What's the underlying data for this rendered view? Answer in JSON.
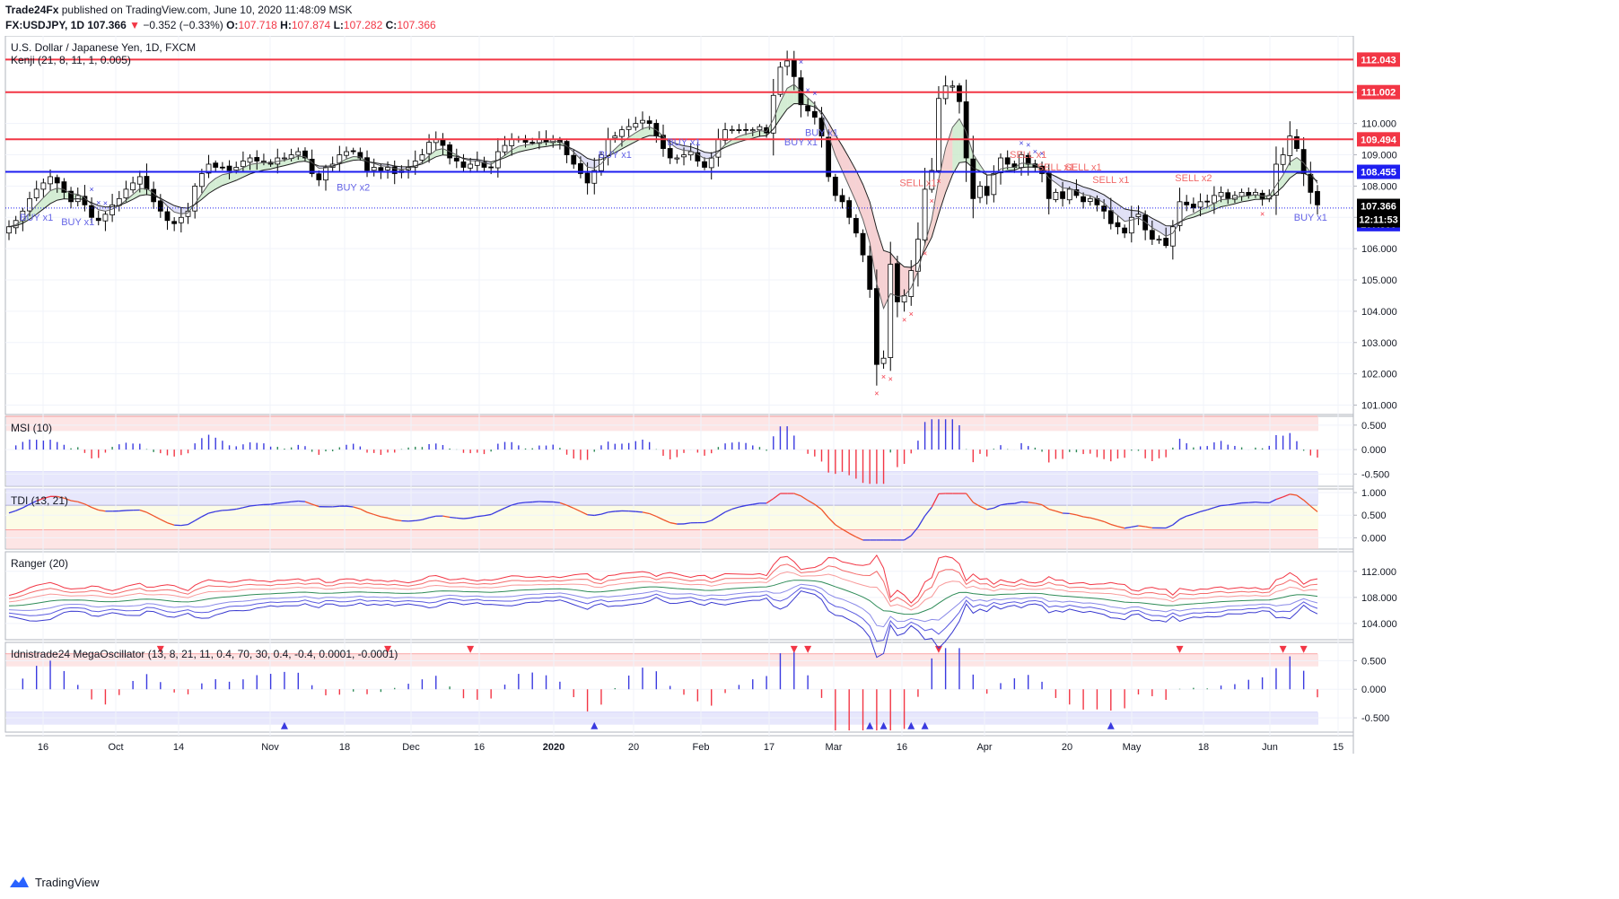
{
  "header": {
    "line1_prefix": "Trade24Fx",
    "line1_rest": "published on TradingView.com, June 10, 2020 11:48:09 MSK",
    "symbol": "FX:USDJPY, 1D",
    "last": "107.366",
    "change": "−0.352 (−0.33%)",
    "o_label": "O:",
    "o": "107.718",
    "h_label": "H:",
    "h": "107.874",
    "l_label": "L:",
    "l": "107.282",
    "c_label": "C:",
    "c": "107.366"
  },
  "footer": {
    "brand": "TradingView"
  },
  "colors": {
    "red_level": "#f23645",
    "blue_level": "#1e1ef0",
    "up": "#ffffff",
    "down": "#000000"
  },
  "chart_data": [
    {
      "type": "candlestick",
      "title": "U.S. Dollar / Japanese Yen, 1D, FXCM",
      "indicator": "Kenji (21, 8, 11, 1, 0.005)",
      "ylim": [
        100.7,
        112.8
      ],
      "yticks": [
        101,
        102,
        103,
        104,
        105,
        106,
        107,
        108,
        109,
        110,
        111
      ],
      "ytick_labels": [
        "101.000",
        "102.000",
        "103.000",
        "104.000",
        "105.000",
        "106.000",
        "107.000",
        "108.000",
        "109.000",
        "110.000",
        "111.000"
      ],
      "levels": [
        {
          "value": 112.043,
          "label": "112.043",
          "color": "#f23645"
        },
        {
          "value": 111.002,
          "label": "111.002",
          "color": "#f23645"
        },
        {
          "value": 109.494,
          "label": "109.494",
          "color": "#f23645"
        },
        {
          "value": 108.455,
          "label": "108.455",
          "color": "#1e1ef0"
        },
        {
          "value": 107.3,
          "label": "107.300",
          "color": "#1e1ef0",
          "dotted": true
        }
      ],
      "last_price": {
        "value": 107.366,
        "label": "107.366",
        "countdown": "12:11:53"
      },
      "x_labels": [
        "16",
        "Oct",
        "14",
        "Nov",
        "18",
        "Dec",
        "16",
        "2020",
        "20",
        "Feb",
        "17",
        "Mar",
        "16",
        "Apr",
        "20",
        "May",
        "18",
        "Jun",
        "15"
      ],
      "annotations": [
        {
          "text": "BUY x1",
          "date": "Sep 16",
          "price": 106.9,
          "side": "buy"
        },
        {
          "text": "BUY x1",
          "date": "Sep 24",
          "price": 106.75,
          "side": "buy"
        },
        {
          "text": "BUY x2",
          "date": "Nov 14",
          "price": 107.85,
          "side": "buy"
        },
        {
          "text": "BUY x1",
          "date": "Dec 26",
          "price": 108.9,
          "side": "buy"
        },
        {
          "text": "BUY x1",
          "date": "Jan 23",
          "price": 109.3,
          "side": "buy"
        },
        {
          "text": "BUY x1",
          "date": "Feb 20",
          "price": 109.3,
          "side": "buy"
        },
        {
          "text": "BUY x1",
          "date": "Feb 25",
          "price": 109.6,
          "side": "buy"
        },
        {
          "text": "SELL x1",
          "date": "Mar 13",
          "price": 108.0,
          "side": "sell"
        },
        {
          "text": "SELL x1",
          "date": "Apr 8",
          "price": 108.9,
          "side": "sell"
        },
        {
          "text": "SELL x1",
          "date": "Apr 14",
          "price": 108.5,
          "side": "sell"
        },
        {
          "text": "SELL x1",
          "date": "Apr 17",
          "price": 108.5,
          "side": "sell"
        },
        {
          "text": "SELL x1",
          "date": "Apr 22",
          "price": 108.1,
          "side": "sell"
        },
        {
          "text": "SELL x2",
          "date": "May 13",
          "price": 108.15,
          "side": "sell"
        },
        {
          "text": "BUY x1",
          "date": "Jun 2",
          "price": 106.9,
          "side": "buy"
        }
      ],
      "series": [
        {
          "name": "OHLC",
          "description": "USDJPY daily candles, Sep 2019 – Jun 10 2020, approximated from the chart",
          "closes": [
            106.7,
            106.9,
            107.2,
            107.6,
            107.9,
            108.1,
            108.3,
            108.1,
            107.8,
            107.5,
            107.7,
            107.4,
            107.0,
            106.9,
            107.1,
            107.4,
            107.6,
            107.9,
            108.1,
            108.3,
            107.9,
            107.5,
            107.2,
            106.9,
            106.8,
            107.0,
            107.2,
            108.0,
            108.4,
            108.7,
            108.6,
            108.6,
            108.5,
            108.6,
            108.8,
            108.9,
            108.8,
            108.8,
            108.7,
            108.9,
            108.9,
            109.0,
            109.1,
            108.9,
            108.4,
            108.2,
            108.6,
            108.7,
            109.0,
            109.1,
            109.1,
            108.9,
            108.5,
            108.6,
            108.5,
            108.6,
            108.4,
            108.5,
            108.6,
            108.8,
            109.0,
            109.4,
            109.5,
            109.3,
            108.9,
            108.8,
            108.6,
            108.7,
            108.8,
            108.6,
            108.6,
            109.1,
            109.3,
            109.5,
            109.5,
            109.4,
            109.4,
            109.5,
            109.4,
            109.5,
            109.4,
            109.0,
            108.7,
            108.4,
            108.1,
            108.5,
            109.0,
            109.5,
            109.6,
            109.8,
            109.9,
            110.0,
            110.1,
            110.0,
            109.6,
            109.2,
            108.9,
            108.9,
            109.0,
            109.1,
            108.8,
            108.6,
            108.9,
            109.5,
            109.8,
            109.8,
            109.8,
            109.8,
            109.8,
            109.9,
            109.7,
            110.9,
            111.8,
            112.0,
            111.5,
            110.6,
            110.4,
            110.2,
            109.6,
            108.3,
            107.7,
            107.5,
            107.0,
            106.5,
            105.8,
            104.7,
            102.3,
            102.5,
            105.5,
            104.3,
            104.5,
            105.3,
            106.3,
            107.9,
            108.5,
            110.8,
            111.2,
            111.2,
            110.7,
            108.9,
            107.6,
            108.0,
            107.7,
            108.4,
            108.9,
            108.7,
            108.6,
            109.0,
            108.7,
            108.6,
            108.4,
            107.6,
            107.8,
            107.6,
            107.9,
            107.7,
            107.5,
            107.6,
            107.4,
            107.2,
            106.8,
            106.7,
            106.5,
            107.0,
            107.1,
            106.6,
            106.3,
            106.3,
            106.1,
            106.7,
            107.5,
            107.4,
            107.3,
            107.5,
            107.5,
            107.7,
            107.8,
            107.6,
            107.7,
            107.8,
            107.7,
            107.8,
            107.6,
            107.7,
            108.7,
            109.0,
            109.6,
            109.2,
            108.4,
            107.8,
            107.4
          ]
        },
        {
          "name": "Kenji upper"
        },
        {
          "name": "Kenji lower"
        }
      ]
    },
    {
      "type": "histogram",
      "title": "MSI (10)",
      "ylim": [
        -0.75,
        0.68
      ],
      "yticks": [
        0.5,
        0.0,
        -0.5
      ],
      "ytick_labels": [
        "0.500",
        "0.000",
        "-0.500"
      ],
      "bands": [
        {
          "from": 0.38,
          "to": 0.68,
          "color": "#fbd0d0"
        },
        {
          "from": -0.75,
          "to": -0.45,
          "color": "#d4d4fa"
        }
      ]
    },
    {
      "type": "line",
      "title": "TDI (13, 21)",
      "ylim": [
        -0.25,
        1.08
      ],
      "yticks": [
        1.0,
        0.5,
        0.0
      ],
      "ytick_labels": [
        "1.000",
        "0.500",
        "0.000"
      ],
      "bands": [
        {
          "from": 0.72,
          "to": 1.08,
          "color": "#d4d4fa"
        },
        {
          "from": 0.18,
          "to": 0.72,
          "color": "#fafad2"
        },
        {
          "from": -0.25,
          "to": 0.18,
          "color": "#fbd0d0"
        }
      ]
    },
    {
      "type": "line",
      "title": "Ranger (20)",
      "ylim": [
        101.5,
        115.0
      ],
      "yticks": [
        112,
        108,
        104
      ],
      "ytick_labels": [
        "112.000",
        "108.000",
        "104.000"
      ]
    },
    {
      "type": "histogram",
      "title": "Idnistrade24 MegaOscillator (13, 8, 21, 11, 0.4, 70, 30, 0.4, -0.4, 0.0001, -0.0001)",
      "ylim": [
        -0.75,
        0.82
      ],
      "yticks": [
        0.5,
        0.0,
        -0.5
      ],
      "ytick_labels": [
        "0.500",
        "0.000",
        "-0.500"
      ],
      "bands": [
        {
          "from": 0.4,
          "to": 0.62,
          "color": "#fbd0d0"
        },
        {
          "from": -0.62,
          "to": -0.4,
          "color": "#d4d4fa"
        }
      ]
    }
  ]
}
